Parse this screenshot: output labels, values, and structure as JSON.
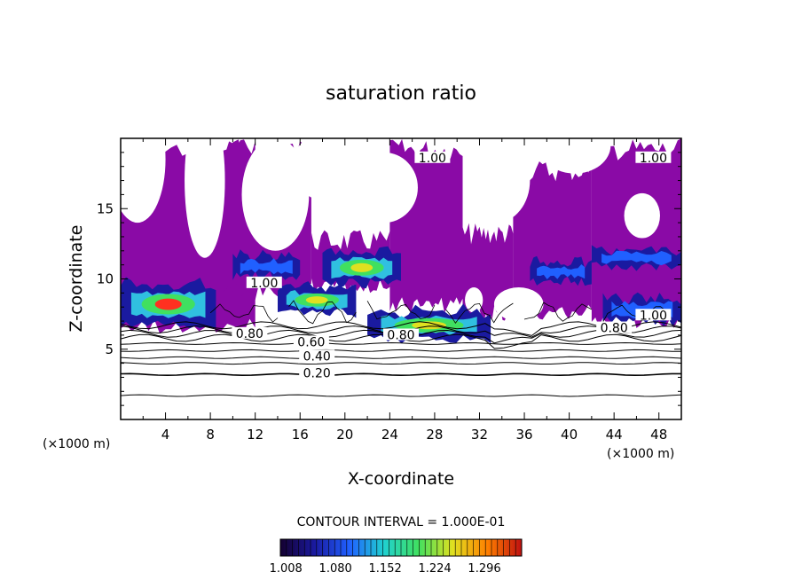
{
  "chart_data": {
    "type": "heatmap",
    "title": "saturation ratio",
    "xlabel": "X-coordinate",
    "ylabel": "Z-coordinate",
    "x_unit": "(×1000 m)",
    "y_unit": "(×1000 m)",
    "xlim": [
      0,
      50
    ],
    "ylim": [
      0,
      20
    ],
    "x_ticks": [
      "4",
      "8",
      "12",
      "16",
      "20",
      "24",
      "28",
      "32",
      "36",
      "40",
      "44",
      "48"
    ],
    "y_ticks": [
      "5",
      "10",
      "15"
    ],
    "contour_interval_text": "CONTOUR INTERVAL = 1.000E-01",
    "contour_labels": [
      {
        "text": "0.20",
        "x": 17.5,
        "z": 3.2
      },
      {
        "text": "0.40",
        "x": 17.5,
        "z": 4.4
      },
      {
        "text": "0.60",
        "x": 17.0,
        "z": 5.4
      },
      {
        "text": "0.80",
        "x": 11.5,
        "z": 6.0
      },
      {
        "text": "0.80",
        "x": 25.0,
        "z": 5.9
      },
      {
        "text": "0.80",
        "x": 44.0,
        "z": 6.4
      },
      {
        "text": "1.00",
        "x": 12.8,
        "z": 9.6
      },
      {
        "text": "1.00",
        "x": 27.8,
        "z": 18.5
      },
      {
        "text": "1.00",
        "x": 47.5,
        "z": 7.3
      },
      {
        "text": "1.00",
        "x": 47.5,
        "z": 18.5
      }
    ],
    "colorbar": {
      "tick_labels": [
        "1.008",
        "1.080",
        "1.152",
        "1.224",
        "1.296"
      ],
      "values": [
        1.008,
        1.08,
        1.152,
        1.224,
        1.296
      ],
      "colors": [
        "#140030",
        "#1a1aa0",
        "#2060ff",
        "#20d0d0",
        "#40e060",
        "#e0e020",
        "#ff8000",
        "#c01010"
      ]
    },
    "cloud_color": "#8a0aa6",
    "supersaturation_layers": [
      {
        "x0": 0.0,
        "x1": 8.5,
        "z": 8.2,
        "peak": 1.25
      },
      {
        "x0": 10.0,
        "x1": 16.0,
        "z": 10.9,
        "peak": 1.06
      },
      {
        "x0": 14.0,
        "x1": 21.0,
        "z": 8.5,
        "peak": 1.12
      },
      {
        "x0": 18.0,
        "x1": 25.0,
        "z": 10.8,
        "peak": 1.17
      },
      {
        "x0": 22.0,
        "x1": 33.0,
        "z": 6.7,
        "peak": 1.14
      },
      {
        "x0": 36.5,
        "x1": 42.0,
        "z": 10.5,
        "peak": 1.05
      },
      {
        "x0": 42.0,
        "x1": 50.0,
        "z": 11.5,
        "peak": 1.04
      },
      {
        "x0": 43.0,
        "x1": 50.0,
        "z": 7.8,
        "peak": 1.1
      }
    ]
  }
}
